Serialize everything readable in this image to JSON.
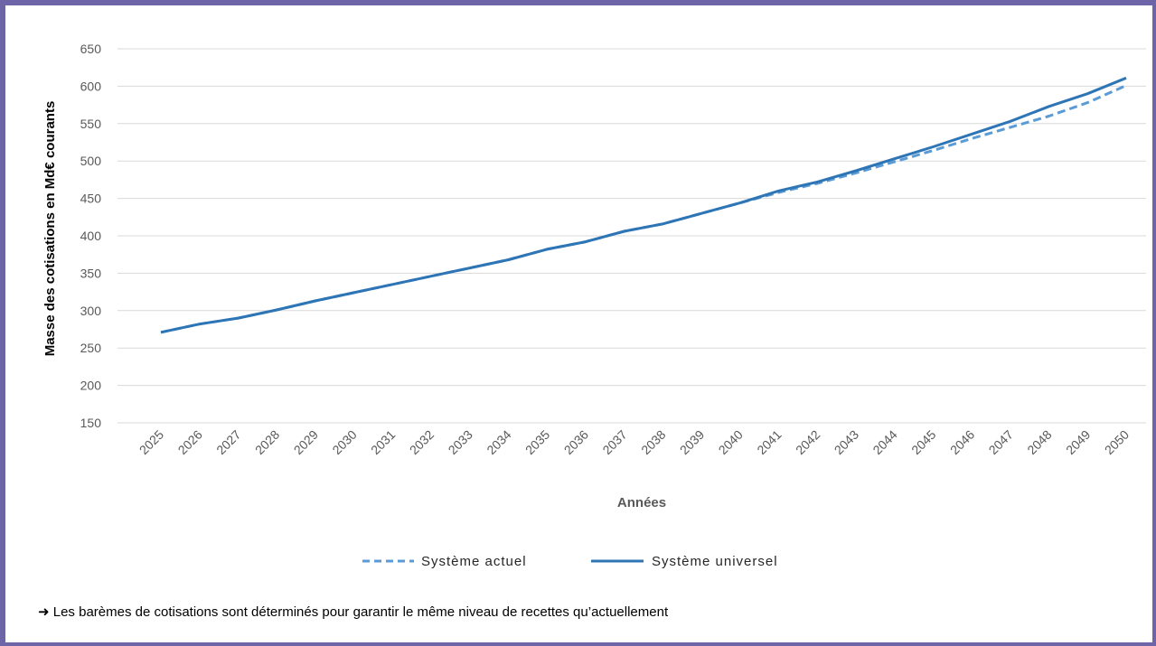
{
  "chart_data": {
    "type": "line",
    "xlabel": "Années",
    "ylabel": "Masse des cotisations en Md€ courants",
    "ylim": [
      150,
      650
    ],
    "yticks": [
      150,
      200,
      250,
      300,
      350,
      400,
      450,
      500,
      550,
      600,
      650
    ],
    "grid": true,
    "legend_position": "bottom",
    "categories": [
      "2025",
      "2026",
      "2027",
      "2028",
      "2029",
      "2030",
      "2031",
      "2032",
      "2033",
      "2034",
      "2035",
      "2036",
      "2037",
      "2038",
      "2039",
      "2040",
      "2041",
      "2042",
      "2043",
      "2044",
      "2045",
      "2046",
      "2047",
      "2048",
      "2049",
      "2050"
    ],
    "series": [
      {
        "name": "Système actuel",
        "style": "dashed",
        "color": "#5b9bd5",
        "values": [
          271,
          282,
          290,
          301,
          313,
          324,
          335,
          346,
          357,
          368,
          382,
          392,
          406,
          416,
          430,
          444,
          458,
          470,
          484,
          499,
          514,
          530,
          545,
          560,
          578,
          601
        ]
      },
      {
        "name": "Système universel",
        "style": "solid",
        "color": "#2e75b6",
        "values": [
          271,
          282,
          290,
          301,
          313,
          324,
          335,
          346,
          357,
          368,
          382,
          392,
          406,
          416,
          430,
          444,
          460,
          472,
          487,
          503,
          519,
          536,
          553,
          573,
          590,
          611
        ]
      }
    ]
  },
  "note": {
    "arrow": "➜",
    "text": "Les barèmes de cotisations sont déterminés pour garantir le même niveau de recettes qu’actuellement"
  }
}
